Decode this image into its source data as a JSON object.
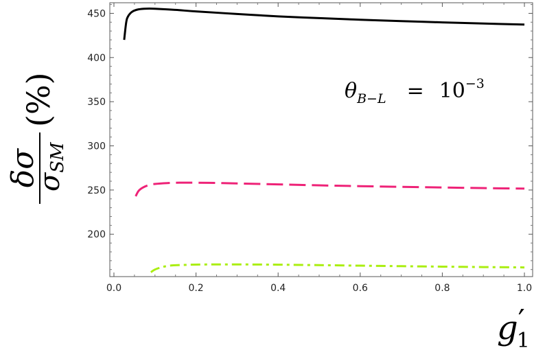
{
  "chart_data": {
    "type": "line",
    "title": "",
    "annotation": {
      "symbol": "θ",
      "subscript": "B−L",
      "equals": "=",
      "base": "10",
      "exponent": "−3"
    },
    "xlabel": {
      "symbol": "g",
      "prime": "′",
      "subscript": "1"
    },
    "ylabel": {
      "numerator": "δσ",
      "denominator_symbol": "σ",
      "denominator_subscript": "SM",
      "unit": "(%)"
    },
    "xlim": [
      -0.01,
      1.02
    ],
    "ylim": [
      152,
      462
    ],
    "x_ticks": [
      0.0,
      0.2,
      0.4,
      0.6,
      0.8,
      1.0
    ],
    "x_tick_labels": [
      "0.0",
      "0.2",
      "0.4",
      "0.6",
      "0.8",
      "1.0"
    ],
    "y_ticks": [
      200,
      250,
      300,
      350,
      400,
      450
    ],
    "y_tick_labels": [
      "200",
      "250",
      "300",
      "350",
      "400",
      "450"
    ],
    "grid": false,
    "series": [
      {
        "color": "#000000",
        "dash": "solid",
        "x": [
          0.025,
          0.03,
          0.035,
          0.045,
          0.06,
          0.08,
          0.1,
          0.15,
          0.2,
          0.3,
          0.4,
          0.5,
          0.6,
          0.7,
          0.8,
          0.9,
          1.0
        ],
        "y": [
          420,
          440,
          447,
          452,
          454.5,
          455.3,
          455.2,
          453.9,
          452.2,
          449.3,
          446.6,
          444.6,
          442.8,
          441.2,
          439.8,
          438.5,
          437.3
        ]
      },
      {
        "color": "#ee2277",
        "dash": "dashed",
        "x": [
          0.053,
          0.06,
          0.07,
          0.085,
          0.1,
          0.13,
          0.16,
          0.2,
          0.25,
          0.3,
          0.4,
          0.5,
          0.6,
          0.7,
          0.8,
          0.9,
          1.0
        ],
        "y": [
          243,
          249,
          252.7,
          255.6,
          256.9,
          257.9,
          258.3,
          258.3,
          258.0,
          257.5,
          256.4,
          255.3,
          254.4,
          253.6,
          252.9,
          252.2,
          251.6
        ]
      },
      {
        "color": "#aaee11",
        "dash": "dashdot",
        "x": [
          0.09,
          0.1,
          0.115,
          0.13,
          0.15,
          0.2,
          0.25,
          0.3,
          0.35,
          0.4,
          0.5,
          0.6,
          0.7,
          0.8,
          0.9,
          1.0
        ],
        "y": [
          157,
          160,
          162.5,
          164,
          164.9,
          165.6,
          165.8,
          165.8,
          165.7,
          165.5,
          165.0,
          164.4,
          163.8,
          163.3,
          162.8,
          162.4
        ]
      }
    ]
  }
}
